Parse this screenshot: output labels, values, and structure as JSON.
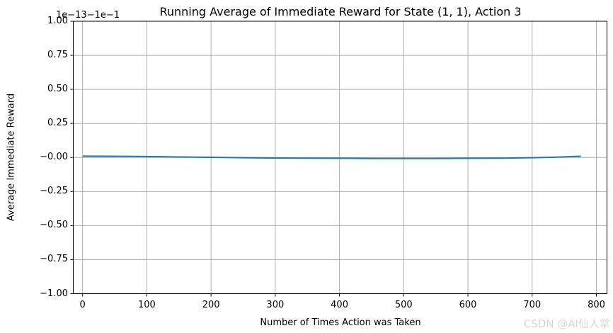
{
  "watermark": {
    "text": "CSDN @AI仙人掌",
    "color": "#d6d6d6"
  },
  "chart_data": {
    "type": "line",
    "title": "Running Average of Immediate Reward for State (1, 1), Action 3",
    "xlabel": "Number of Times Action was Taken",
    "ylabel": "Average Immediate Reward",
    "y_offset_text": "1e−13−1e−1",
    "grid": true,
    "legend": "none",
    "xlim": [
      -14.5,
      816.5
    ],
    "ylim": [
      -1.0,
      1.0
    ],
    "x_tick_values": [
      0,
      100,
      200,
      300,
      400,
      500,
      600,
      700,
      800
    ],
    "x_tick_labels": [
      "0",
      "100",
      "200",
      "300",
      "400",
      "500",
      "600",
      "700",
      "800"
    ],
    "y_tick_values": [
      1.0,
      0.75,
      0.5,
      0.25,
      0.0,
      -0.25,
      -0.5,
      -0.75,
      -1.0
    ],
    "y_tick_labels": [
      "1.00",
      "0.75",
      "0.50",
      "0.25",
      "−0.00",
      "−0.25",
      "−0.50",
      "−0.75",
      "−1.00"
    ],
    "colors": {
      "line": "#1f77b4",
      "grid": "#b0b0b0",
      "spine": "#000000",
      "text": "#000000"
    },
    "series": [
      {
        "name": "running_average_immediate_reward",
        "x": [
          1,
          40,
          80,
          120,
          160,
          200,
          250,
          300,
          350,
          400,
          450,
          500,
          550,
          600,
          650,
          700,
          730,
          755,
          775
        ],
        "y": [
          0.01,
          0.009,
          0.008,
          0.006,
          0.003,
          0.001,
          -0.002,
          -0.004,
          -0.005,
          -0.006,
          -0.007,
          -0.007,
          -0.007,
          -0.006,
          -0.005,
          -0.002,
          0.001,
          0.005,
          0.009
        ]
      }
    ]
  }
}
